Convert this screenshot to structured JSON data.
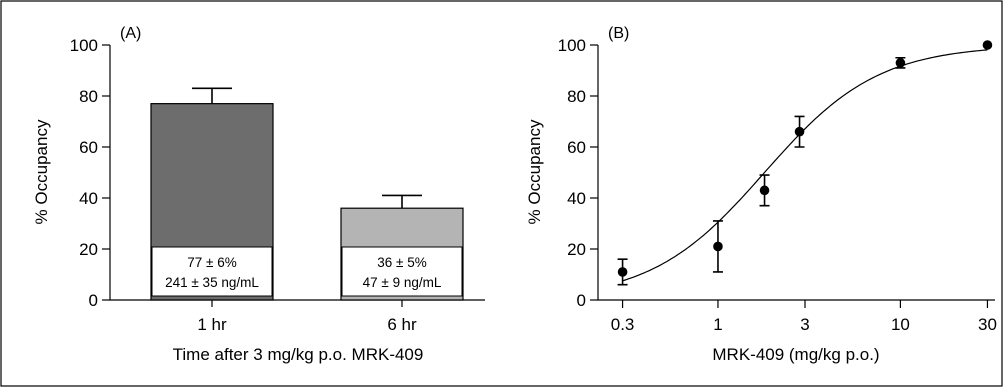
{
  "chart_data": [
    {
      "type": "bar",
      "panel_label": "(A)",
      "categories": [
        "1 hr",
        "6 hr"
      ],
      "values": [
        77,
        36
      ],
      "errors": [
        6,
        5
      ],
      "bar_colors": [
        "#6d6d6d",
        "#b4b4b4"
      ],
      "bar_annotations": [
        [
          "77 ± 6%",
          "241 ± 35 ng/mL"
        ],
        [
          "36 ± 5%",
          "47 ± 9 ng/mL"
        ]
      ],
      "xlabel": "Time after 3 mg/kg p.o. MRK-409",
      "ylabel": "% Occupancy",
      "ylim": [
        0,
        100
      ],
      "yticks": [
        0,
        20,
        40,
        60,
        80,
        100
      ]
    },
    {
      "type": "scatter",
      "panel_label": "(B)",
      "x_scale": "log",
      "points": [
        {
          "x": 0.3,
          "y": 11,
          "err": 5
        },
        {
          "x": 1,
          "y": 21,
          "err": 10
        },
        {
          "x": 1.8,
          "y": 43,
          "err": 6
        },
        {
          "x": 2.8,
          "y": 66,
          "err": 6
        },
        {
          "x": 10,
          "y": 93,
          "err": 2
        },
        {
          "x": 30,
          "y": 100,
          "err": 0
        }
      ],
      "fit_curve": {
        "type": "sigmoid",
        "ed50": 1.8,
        "hill": 1.4,
        "top": 100,
        "x_from": 0.3,
        "x_to": 30
      },
      "xticks": [
        0.3,
        1,
        3,
        10,
        30
      ],
      "xtick_labels": [
        "0.3",
        "1",
        "3",
        "10",
        "30"
      ],
      "xlim": [
        0.22,
        33
      ],
      "xlabel": "MRK-409 (mg/kg p.o.)",
      "ylabel": "% Occupancy",
      "ylim": [
        0,
        100
      ],
      "yticks": [
        0,
        20,
        40,
        60,
        80,
        100
      ]
    }
  ]
}
